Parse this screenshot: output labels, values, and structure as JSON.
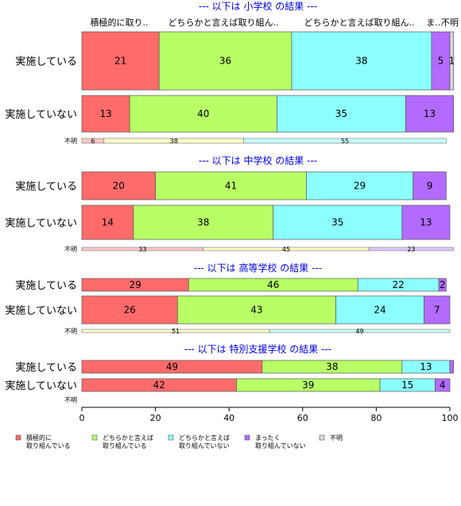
{
  "chart_data": {
    "type": "bar",
    "orientation": "horizontal",
    "stacked": true,
    "xlim": [
      0,
      100
    ],
    "x_ticks": [
      "0",
      "20",
      "40",
      "60",
      "80",
      "100"
    ],
    "category_headers": [
      "積極的に取り..",
      "どちらかと言えば取り組ん..",
      "どちらかと言えば取り組ん..",
      "ま...",
      "不明"
    ],
    "legend": {
      "position": "bottom",
      "items": [
        {
          "lines": [
            "積極的に",
            "取り組んでいる"
          ],
          "color": "#ff6b6b"
        },
        {
          "lines": [
            "どちらかと言えば",
            "取り組んでいる"
          ],
          "color": "#b8ff66"
        },
        {
          "lines": [
            "どちらかと言えば",
            "取り組んでいない"
          ],
          "color": "#8cffff"
        },
        {
          "lines": [
            "まったく",
            "取り組んでいない"
          ],
          "color": "#b36bff"
        },
        {
          "lines": [
            "不明"
          ],
          "color": "#d9d9d9"
        }
      ]
    },
    "colors": [
      "#ff6b6b",
      "#b8ff66",
      "#8cffff",
      "#b36bff",
      "#d9d9d9"
    ],
    "small_colors": [
      "#ffc9c9",
      "#fffcc9",
      "#c9ffff",
      "#e3c9ff",
      "#eeeeee"
    ],
    "sections": [
      {
        "title": "--- 以下は 小学校 の結果 ---",
        "rows": [
          {
            "label": "実施している",
            "values": [
              21,
              36,
              38,
              5,
              1
            ],
            "labels": [
              "21",
              "36",
              "38",
              "5",
              "1"
            ]
          },
          {
            "label": "実施していない",
            "values": [
              13,
              40,
              35,
              13,
              0
            ],
            "labels": [
              "13",
              "40",
              "35",
              "13",
              ""
            ]
          },
          {
            "label": "不明",
            "values": [
              6,
              38,
              55,
              0,
              0
            ],
            "labels": [
              "6",
              "38",
              "55",
              "",
              ""
            ]
          }
        ]
      },
      {
        "title": "--- 以下は 中学校 の結果 ---",
        "rows": [
          {
            "label": "実施している",
            "values": [
              20,
              41,
              29,
              9,
              0
            ],
            "labels": [
              "20",
              "41",
              "29",
              "9",
              ""
            ]
          },
          {
            "label": "実施していない",
            "values": [
              14,
              38,
              35,
              13,
              0
            ],
            "labels": [
              "14",
              "38",
              "35",
              "13",
              ""
            ]
          },
          {
            "label": "不明",
            "values": [
              33,
              45,
              0,
              23,
              0
            ],
            "labels": [
              "33",
              "45",
              "",
              "23",
              ""
            ]
          }
        ]
      },
      {
        "title": "--- 以下は 高等学校 の結果 ---",
        "rows": [
          {
            "label": "実施している",
            "values": [
              29,
              46,
              22,
              2,
              0
            ],
            "labels": [
              "29",
              "46",
              "22",
              "2",
              ""
            ]
          },
          {
            "label": "実施していない",
            "values": [
              26,
              43,
              24,
              7,
              0
            ],
            "labels": [
              "26",
              "43",
              "24",
              "7",
              ""
            ]
          },
          {
            "label": "不明",
            "values": [
              0,
              51,
              49,
              0,
              0
            ],
            "labels": [
              "",
              "51",
              "49",
              "",
              ""
            ]
          }
        ]
      },
      {
        "title": "--- 以下は 特別支援学校 の結果 ---",
        "rows": [
          {
            "label": "実施している",
            "values": [
              49,
              38,
              13,
              1,
              0
            ],
            "labels": [
              "49",
              "38",
              "13",
              "",
              ""
            ]
          },
          {
            "label": "実施していない",
            "values": [
              42,
              39,
              15,
              4,
              0
            ],
            "labels": [
              "42",
              "39",
              "15",
              "4",
              ""
            ]
          },
          {
            "label": "不明",
            "values": [
              0,
              0,
              0,
              0,
              0
            ],
            "labels": [
              "",
              "",
              "",
              "",
              ""
            ]
          }
        ]
      }
    ]
  }
}
